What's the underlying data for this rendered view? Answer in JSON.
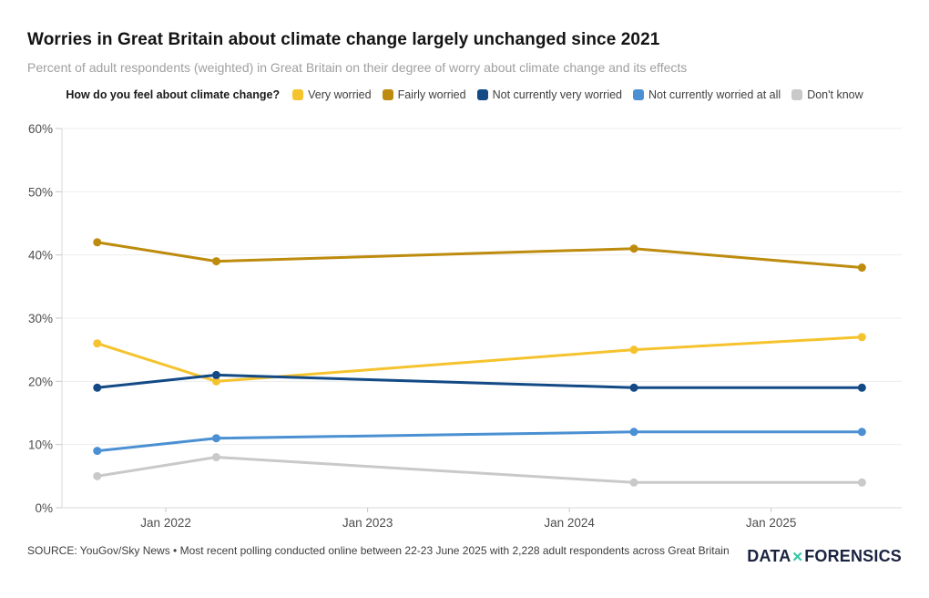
{
  "header": {
    "title": "Worries in Great Britain about climate change largely unchanged since 2021",
    "subtitle": "Percent of adult respondents (weighted) in Great Britain on their degree of worry about climate change and its effects"
  },
  "legend": {
    "question": "How do you feel about climate change?",
    "items": [
      {
        "label": "Very worried",
        "color": "#F5C32E"
      },
      {
        "label": "Fairly worried",
        "color": "#BD8B0D"
      },
      {
        "label": "Not currently very worried",
        "color": "#134A86"
      },
      {
        "label": "Not currently worried at all",
        "color": "#4A90D2"
      },
      {
        "label": "Don't know",
        "color": "#C9C9C9"
      }
    ]
  },
  "chart_data": {
    "type": "line",
    "x": [
      2021.66,
      2022.25,
      2024.32,
      2025.45
    ],
    "x_tick_years": [
      2022,
      2023,
      2024,
      2025
    ],
    "x_tick_labels": [
      "Jan 2022",
      "Jan 2023",
      "Jan 2024",
      "Jan 2025"
    ],
    "xlim": [
      2021.485,
      2025.647
    ],
    "ylim": [
      0,
      60
    ],
    "y_tick_step": 10,
    "y_tick_suffix": "%",
    "grid": true,
    "legend_position": "top",
    "series": [
      {
        "name": "Very worried",
        "color": "#F5C32E",
        "values": [
          26,
          20,
          25,
          27
        ]
      },
      {
        "name": "Fairly worried",
        "color": "#BD8B0D",
        "values": [
          42,
          39,
          41,
          38
        ]
      },
      {
        "name": "Not currently very worried",
        "color": "#134A86",
        "values": [
          19,
          21,
          19,
          19
        ]
      },
      {
        "name": "Not currently worried at all",
        "color": "#4A90D2",
        "values": [
          9,
          11,
          12,
          12
        ]
      },
      {
        "name": "Don't know",
        "color": "#C9C9C9",
        "values": [
          5,
          8,
          4,
          4
        ]
      }
    ]
  },
  "footer": {
    "source": "SOURCE: YouGov/Sky News • Most recent polling conducted online between 22-23 June 2025 with 2,228 adult respondents across Great Britain",
    "logo": {
      "part1": "DATA",
      "separator": "✕",
      "part2": "FORENSICS"
    }
  }
}
